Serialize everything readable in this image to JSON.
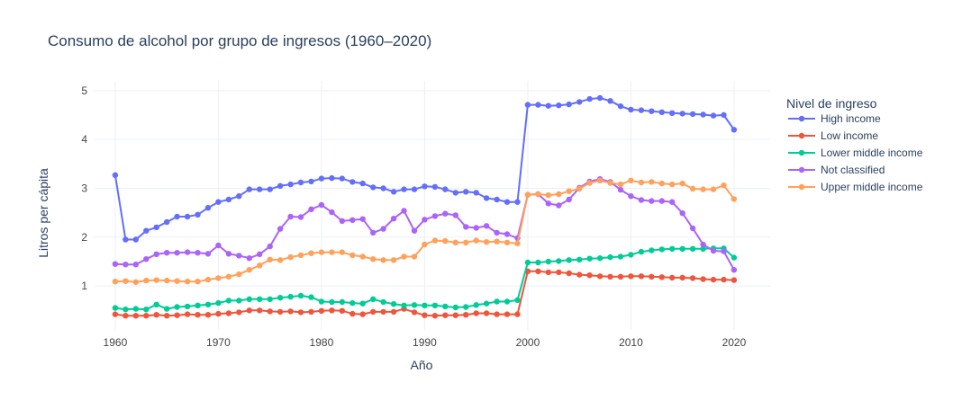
{
  "chart_data": {
    "type": "line",
    "title": "Consumo de alcohol por grupo de ingresos (1960–2020)",
    "xlabel": "Año",
    "ylabel": "Litros per cápita",
    "xlim": [
      1958,
      2023.5
    ],
    "ylim": [
      0.1,
      5.2
    ],
    "xticks": [
      1960,
      1970,
      1980,
      1990,
      2000,
      2010,
      2020
    ],
    "yticks": [
      1,
      2,
      3,
      4,
      5
    ],
    "grid": true,
    "legend_title": "Nivel de ingreso",
    "legend_position": "right",
    "x": [
      1960,
      1961,
      1962,
      1963,
      1964,
      1965,
      1966,
      1967,
      1968,
      1969,
      1970,
      1971,
      1972,
      1973,
      1974,
      1975,
      1976,
      1977,
      1978,
      1979,
      1980,
      1981,
      1982,
      1983,
      1984,
      1985,
      1986,
      1987,
      1988,
      1989,
      1990,
      1991,
      1992,
      1993,
      1994,
      1995,
      1996,
      1997,
      1998,
      1999,
      2000,
      2001,
      2002,
      2003,
      2004,
      2005,
      2006,
      2007,
      2008,
      2009,
      2010,
      2011,
      2012,
      2013,
      2014,
      2015,
      2016,
      2017,
      2018,
      2019,
      2020
    ],
    "series": [
      {
        "name": "High income",
        "color": "#636efa",
        "values": [
          3.27,
          1.95,
          1.95,
          2.13,
          2.2,
          2.31,
          2.42,
          2.42,
          2.46,
          2.6,
          2.72,
          2.77,
          2.84,
          2.98,
          2.98,
          2.98,
          3.05,
          3.08,
          3.12,
          3.14,
          3.2,
          3.21,
          3.2,
          3.13,
          3.1,
          3.02,
          3.0,
          2.93,
          2.98,
          2.98,
          3.04,
          3.03,
          2.98,
          2.91,
          2.93,
          2.91,
          2.8,
          2.77,
          2.72,
          2.72,
          4.71,
          4.71,
          4.69,
          4.7,
          4.72,
          4.77,
          4.83,
          4.85,
          4.79,
          4.68,
          4.61,
          4.6,
          4.58,
          4.56,
          4.54,
          4.53,
          4.52,
          4.51,
          4.49,
          4.5,
          4.2
        ]
      },
      {
        "name": "Low income",
        "color": "#ef553b",
        "values": [
          0.42,
          0.39,
          0.39,
          0.39,
          0.41,
          0.39,
          0.4,
          0.42,
          0.41,
          0.41,
          0.43,
          0.44,
          0.46,
          0.5,
          0.5,
          0.48,
          0.47,
          0.48,
          0.46,
          0.47,
          0.49,
          0.5,
          0.49,
          0.43,
          0.42,
          0.47,
          0.47,
          0.47,
          0.53,
          0.46,
          0.4,
          0.39,
          0.4,
          0.4,
          0.41,
          0.44,
          0.44,
          0.42,
          0.42,
          0.42,
          1.3,
          1.3,
          1.28,
          1.28,
          1.26,
          1.23,
          1.22,
          1.2,
          1.19,
          1.19,
          1.2,
          1.2,
          1.19,
          1.18,
          1.17,
          1.17,
          1.16,
          1.14,
          1.13,
          1.13,
          1.12
        ]
      },
      {
        "name": "Lower middle income",
        "color": "#00cc96",
        "values": [
          0.55,
          0.52,
          0.53,
          0.52,
          0.62,
          0.53,
          0.57,
          0.58,
          0.6,
          0.62,
          0.65,
          0.7,
          0.7,
          0.73,
          0.73,
          0.73,
          0.76,
          0.78,
          0.8,
          0.77,
          0.68,
          0.67,
          0.67,
          0.65,
          0.64,
          0.73,
          0.67,
          0.63,
          0.6,
          0.61,
          0.6,
          0.6,
          0.58,
          0.56,
          0.57,
          0.61,
          0.64,
          0.68,
          0.68,
          0.71,
          1.48,
          1.48,
          1.5,
          1.51,
          1.53,
          1.54,
          1.56,
          1.57,
          1.59,
          1.6,
          1.64,
          1.7,
          1.73,
          1.75,
          1.76,
          1.76,
          1.76,
          1.76,
          1.77,
          1.77,
          1.58
        ]
      },
      {
        "name": "Not classified",
        "color": "#ab63fa",
        "values": [
          1.45,
          1.44,
          1.44,
          1.55,
          1.65,
          1.68,
          1.68,
          1.69,
          1.68,
          1.66,
          1.83,
          1.66,
          1.62,
          1.57,
          1.65,
          1.81,
          2.17,
          2.42,
          2.41,
          2.57,
          2.66,
          2.51,
          2.33,
          2.35,
          2.37,
          2.09,
          2.17,
          2.38,
          2.54,
          2.13,
          2.36,
          2.43,
          2.48,
          2.45,
          2.21,
          2.19,
          2.23,
          2.09,
          2.06,
          1.98,
          2.87,
          2.88,
          2.69,
          2.65,
          2.77,
          3.01,
          3.14,
          3.19,
          3.13,
          2.97,
          2.84,
          2.76,
          2.74,
          2.74,
          2.72,
          2.49,
          2.18,
          1.85,
          1.72,
          1.71,
          1.33
        ]
      },
      {
        "name": "Upper middle income",
        "color": "#ffa15a",
        "values": [
          1.09,
          1.1,
          1.08,
          1.11,
          1.12,
          1.11,
          1.1,
          1.09,
          1.09,
          1.13,
          1.16,
          1.19,
          1.24,
          1.33,
          1.42,
          1.54,
          1.53,
          1.59,
          1.63,
          1.67,
          1.69,
          1.69,
          1.69,
          1.63,
          1.6,
          1.55,
          1.53,
          1.53,
          1.6,
          1.6,
          1.85,
          1.93,
          1.92,
          1.89,
          1.89,
          1.93,
          1.9,
          1.91,
          1.89,
          1.87,
          2.87,
          2.88,
          2.86,
          2.88,
          2.94,
          2.99,
          3.11,
          3.16,
          3.11,
          3.08,
          3.16,
          3.12,
          3.13,
          3.1,
          3.08,
          3.1,
          2.99,
          2.98,
          2.98,
          3.06,
          2.78
        ]
      }
    ]
  }
}
